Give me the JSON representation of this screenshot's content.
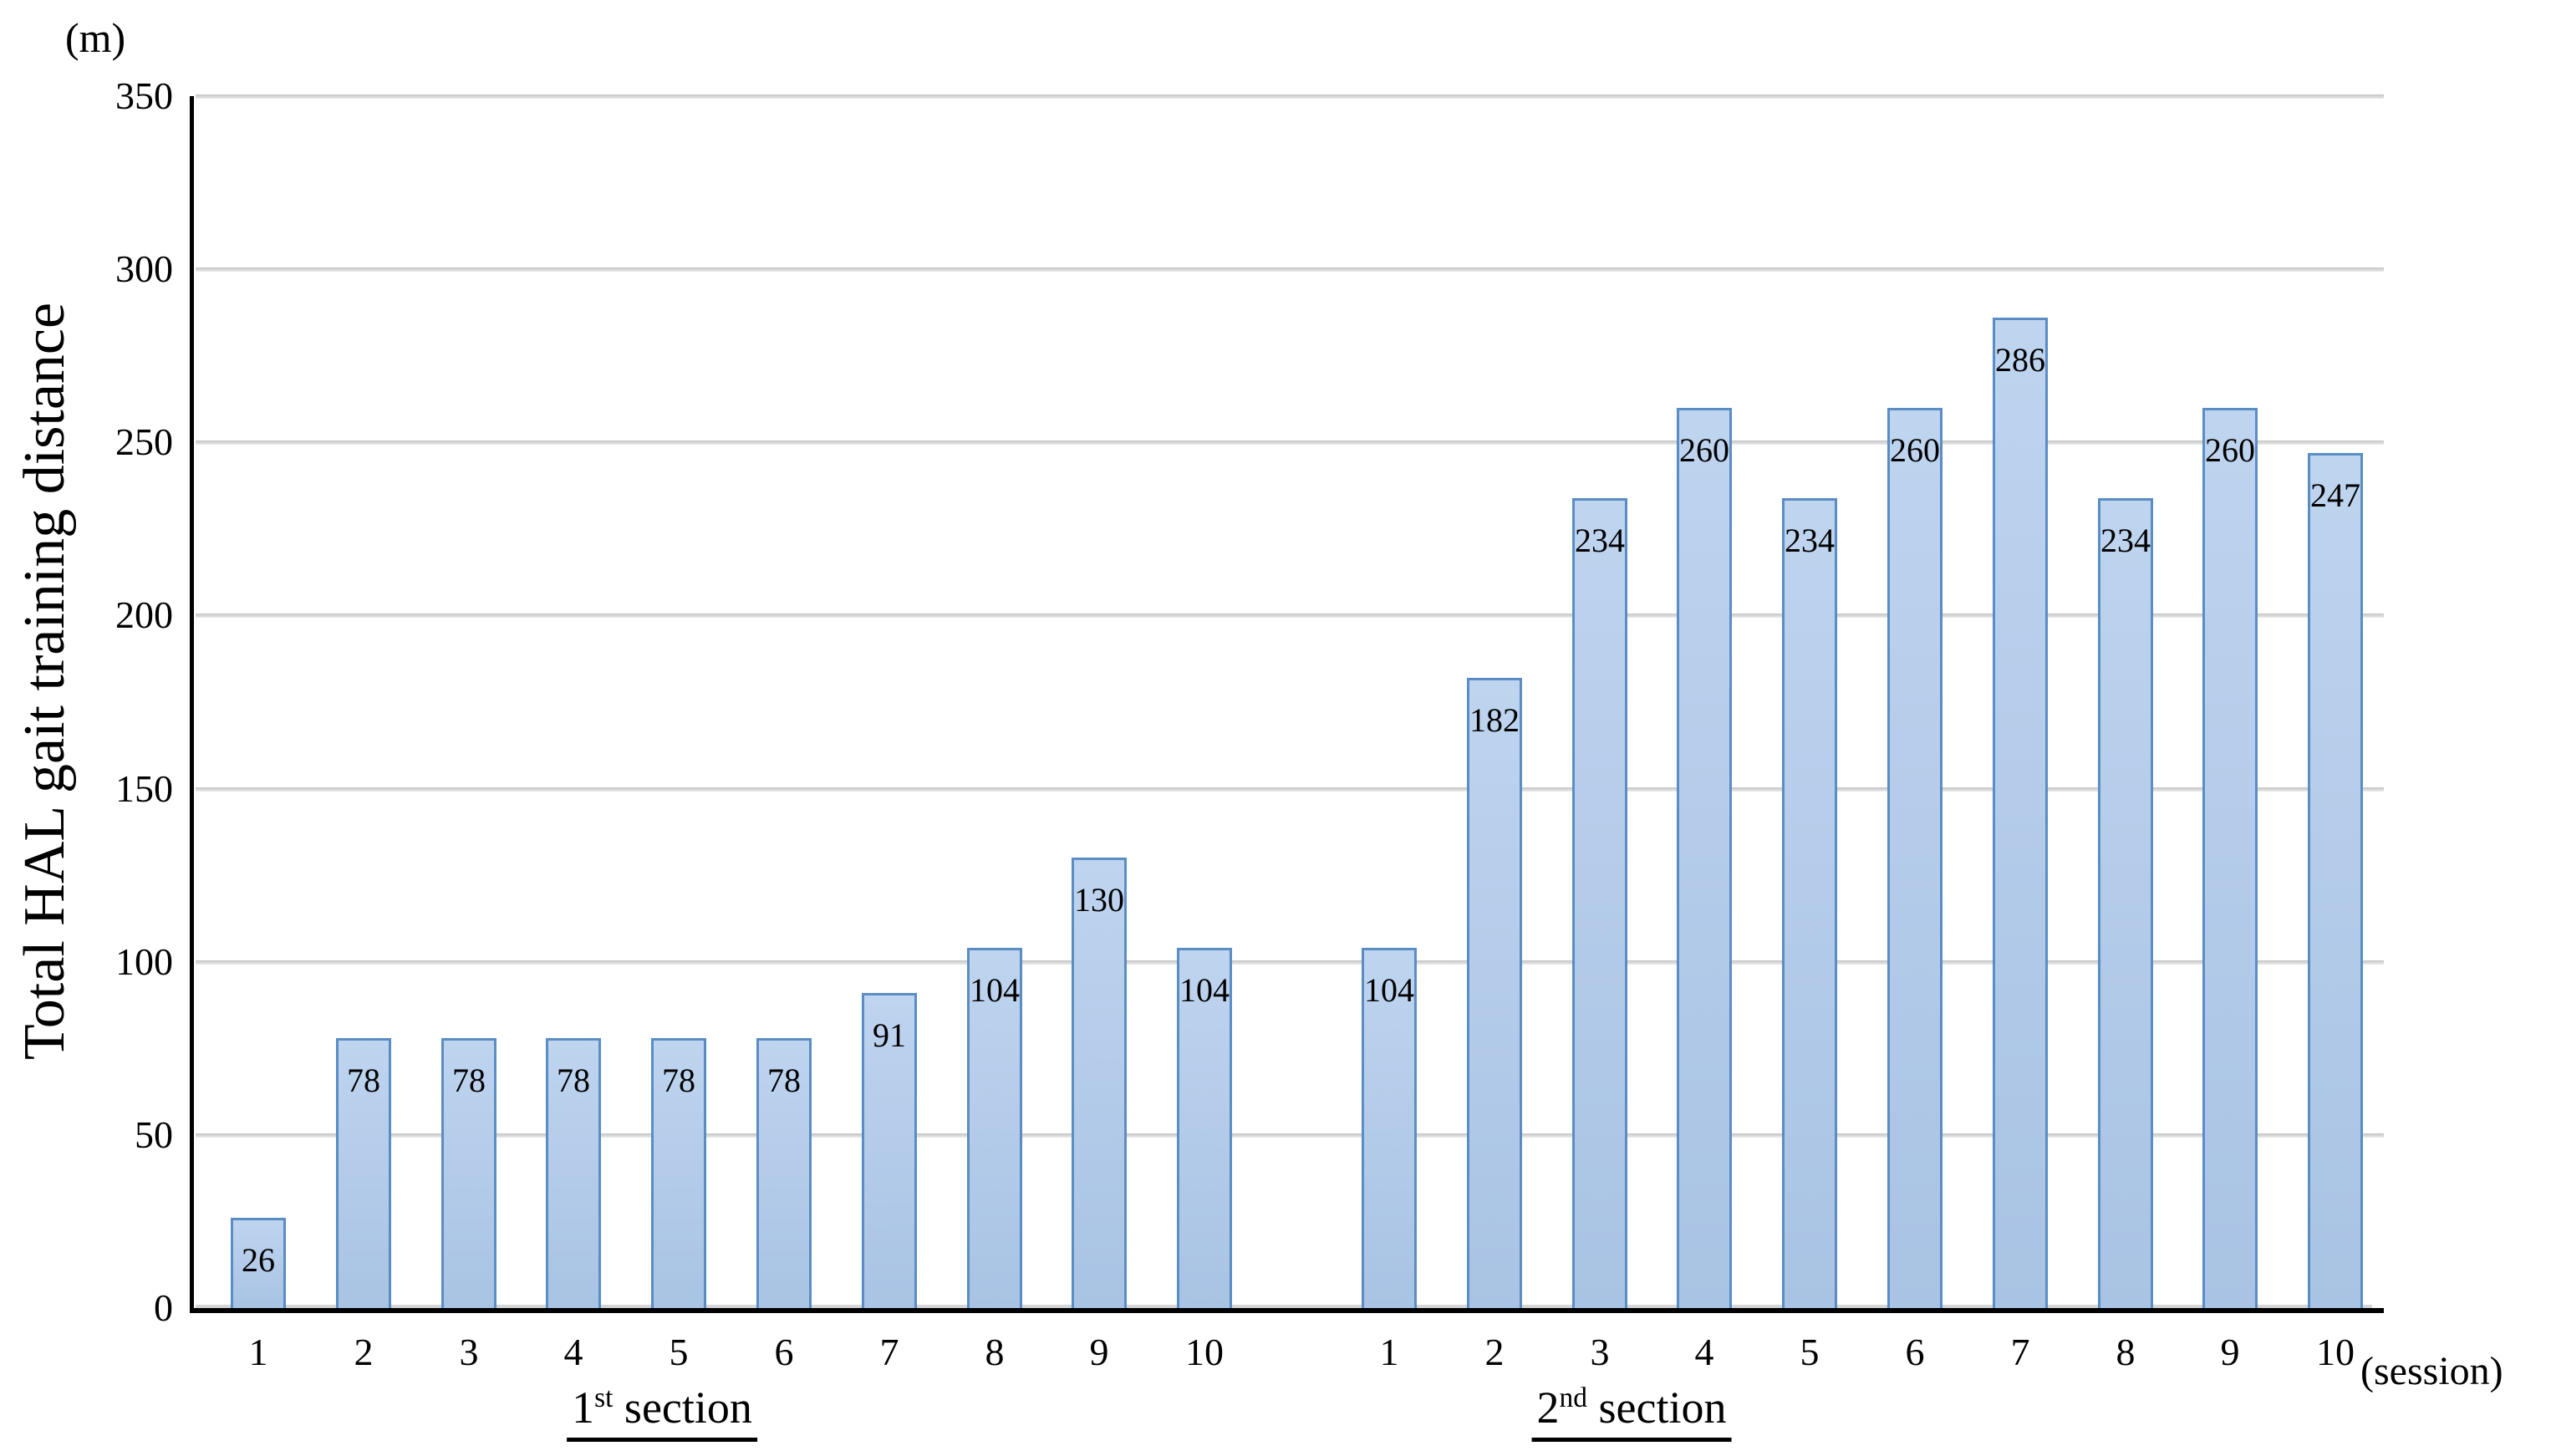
{
  "chart_data": {
    "type": "bar",
    "title": "",
    "ylabel": "Total HAL gait training distance",
    "y_unit_label": "(m)",
    "x_unit_label": "(session)",
    "ylim": [
      0,
      350
    ],
    "yticks": [
      0,
      50,
      100,
      150,
      200,
      250,
      300,
      350
    ],
    "grid": true,
    "legend": false,
    "bar_value_labels": "inside-end",
    "sections": [
      {
        "label_number": "1",
        "label_ordinal": "st",
        "label_word": "section",
        "categories": [
          "1",
          "2",
          "3",
          "4",
          "5",
          "6",
          "7",
          "8",
          "9",
          "10"
        ],
        "values": [
          26,
          78,
          78,
          78,
          78,
          78,
          91,
          104,
          130,
          104
        ]
      },
      {
        "label_number": "2",
        "label_ordinal": "nd",
        "label_word": "section",
        "categories": [
          "1",
          "2",
          "3",
          "4",
          "5",
          "6",
          "7",
          "8",
          "9",
          "10"
        ],
        "values": [
          104,
          182,
          234,
          260,
          234,
          260,
          286,
          234,
          260,
          247
        ]
      }
    ],
    "colors": {
      "background": "#ffffff",
      "bar_fill_top": "#bed4ef",
      "bar_fill_bottom": "#a9c3e4",
      "bar_border": "#5b8dc5",
      "gridline": "#d0d0d0",
      "axis": "#000000",
      "text": "#000000"
    }
  }
}
